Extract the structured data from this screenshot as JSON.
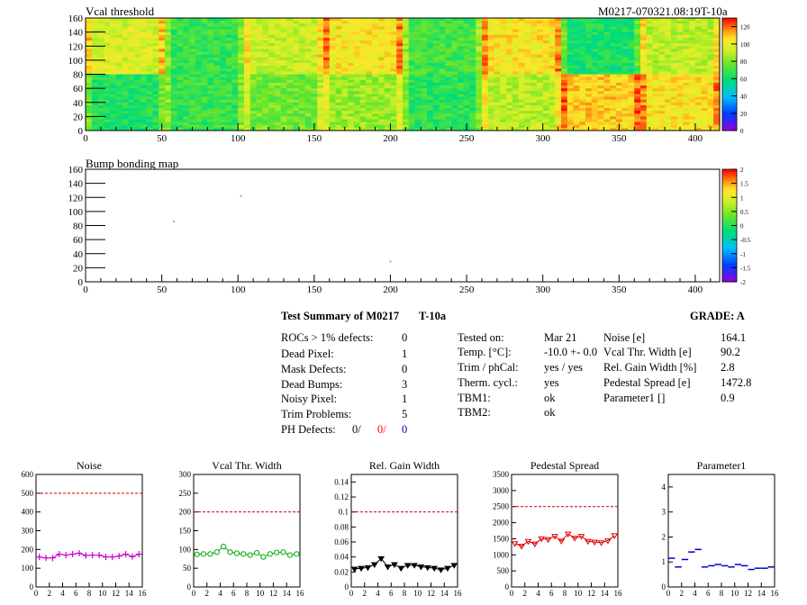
{
  "header": {
    "map1_title": "Vcal threshold",
    "module_tag": "M0217-070321.08:19T-10a",
    "map2_title": "Bump bonding map"
  },
  "maps": {
    "x_ticks": [
      "0",
      "50",
      "100",
      "150",
      "200",
      "250",
      "300",
      "350",
      "400"
    ],
    "y_ticks": [
      "0",
      "20",
      "40",
      "60",
      "80",
      "100",
      "120",
      "140",
      "160"
    ],
    "xlim": [
      0,
      416
    ],
    "ylim": [
      0,
      160
    ],
    "vcal_scale_labels": [
      "0",
      "20",
      "40",
      "60",
      "80",
      "100",
      "120"
    ],
    "vcal_zlim": [
      0,
      130
    ],
    "bump_scale_labels": [
      "-2",
      "-1.5",
      "-1",
      "-0.5",
      "0",
      "0.5",
      "1",
      "1.5",
      "2"
    ],
    "bump_zlim": [
      -2,
      2
    ],
    "vcal_roc_levels_bottom_row": [
      64,
      68,
      78,
      84,
      66,
      90,
      108,
      104
    ],
    "vcal_roc_levels_top_row": [
      96,
      68,
      92,
      104,
      70,
      104,
      62,
      90
    ],
    "bump_points": [
      [
        58,
        86
      ],
      [
        102,
        122
      ],
      [
        200,
        29
      ]
    ]
  },
  "summary": {
    "title": "Test Summary of M0217",
    "test_name": "T-10a",
    "grade_label": "GRADE:  A",
    "col1": [
      {
        "label": "ROCs > 1% defects:",
        "value": "0"
      },
      {
        "label": "Dead Pixel:",
        "value": "1"
      },
      {
        "label": "Mask Defects:",
        "value": "0"
      },
      {
        "label": "Dead Bumps:",
        "value": "3"
      },
      {
        "label": "Noisy Pixel:",
        "value": "1"
      },
      {
        "label": "Trim Problems:",
        "value": "5"
      }
    ],
    "ph_label": "PH Defects:",
    "ph_values": [
      "0/",
      "0/",
      "0"
    ],
    "ph_colors": [
      "#000000",
      "#ff0000",
      "#0000cc"
    ],
    "col2": [
      {
        "label": "Tested on:",
        "value": "Mar 21"
      },
      {
        "label": "Temp. [°C]:",
        "value": "-10.0 +- 0.0"
      },
      {
        "label": "Trim / phCal:",
        "value": "yes / yes"
      },
      {
        "label": "Therm. cycl.:",
        "value": "yes"
      },
      {
        "label": "TBM1:",
        "value": "ok"
      },
      {
        "label": "TBM2:",
        "value": "ok"
      }
    ],
    "col3": [
      {
        "label": "Noise [e]",
        "value": "164.1"
      },
      {
        "label": "Vcal Thr. Width [e]",
        "value": "90.2"
      },
      {
        "label": "Rel. Gain Width [%]",
        "value": "2.8"
      },
      {
        "label": "Pedestal Spread [e]",
        "value": "1472.8"
      },
      {
        "label": "Parameter1 []",
        "value": "0.9"
      }
    ]
  },
  "chart_data": [
    {
      "type": "line",
      "title": "Noise",
      "x": [
        0,
        1,
        2,
        3,
        4,
        5,
        6,
        7,
        8,
        9,
        10,
        11,
        12,
        13,
        14,
        15
      ],
      "values": [
        160,
        155,
        155,
        175,
        170,
        175,
        180,
        168,
        170,
        170,
        160,
        160,
        165,
        175,
        162,
        175
      ],
      "ylim": [
        0,
        600
      ],
      "yticks": [
        "0",
        "100",
        "200",
        "300",
        "400",
        "500",
        "600"
      ],
      "xticks": [
        "0",
        "2",
        "4",
        "6",
        "8",
        "10",
        "12",
        "14",
        "16"
      ],
      "limit": 500,
      "color": "#cc00cc",
      "marker": "plus"
    },
    {
      "type": "line",
      "title": "Vcal Thr. Width",
      "x": [
        0,
        1,
        2,
        3,
        4,
        5,
        6,
        7,
        8,
        9,
        10,
        11,
        12,
        13,
        14,
        15
      ],
      "values": [
        87,
        88,
        88,
        93,
        108,
        93,
        90,
        88,
        85,
        91,
        80,
        88,
        92,
        93,
        85,
        88
      ],
      "ylim": [
        0,
        300
      ],
      "yticks": [
        "0",
        "50",
        "100",
        "150",
        "200",
        "250",
        "300"
      ],
      "xticks": [
        "0",
        "2",
        "4",
        "6",
        "8",
        "10",
        "12",
        "14",
        "16"
      ],
      "limit": 200,
      "color": "#00aa00",
      "marker": "circle"
    },
    {
      "type": "line",
      "title": "Rel. Gain Width",
      "x": [
        0,
        1,
        2,
        3,
        4,
        5,
        6,
        7,
        8,
        9,
        10,
        11,
        12,
        13,
        14,
        15
      ],
      "values": [
        0.024,
        0.025,
        0.026,
        0.03,
        0.038,
        0.027,
        0.03,
        0.025,
        0.029,
        0.029,
        0.027,
        0.026,
        0.025,
        0.023,
        0.025,
        0.029
      ],
      "ylim": [
        0,
        0.15
      ],
      "yticks": [
        "0",
        "0.02",
        "0.04",
        "0.06",
        "0.08",
        "0.1",
        "0.12",
        "0.14"
      ],
      "xticks": [
        "0",
        "2",
        "4",
        "6",
        "8",
        "10",
        "12",
        "14",
        "16"
      ],
      "limit": 0.1,
      "color": "#000000",
      "marker": "triangle"
    },
    {
      "type": "line",
      "title": "Pedestal Spread",
      "x": [
        0,
        1,
        2,
        3,
        4,
        5,
        6,
        7,
        8,
        9,
        10,
        11,
        12,
        13,
        14,
        15
      ],
      "values": [
        1350,
        1270,
        1420,
        1340,
        1500,
        1480,
        1580,
        1430,
        1650,
        1520,
        1580,
        1420,
        1400,
        1380,
        1440,
        1600
      ],
      "ylim": [
        0,
        3500
      ],
      "yticks": [
        "0",
        "500",
        "1000",
        "1500",
        "2000",
        "2500",
        "3000",
        "3500"
      ],
      "xticks": [
        "0",
        "2",
        "4",
        "6",
        "8",
        "10",
        "12",
        "14",
        "16"
      ],
      "limit": 2500,
      "color": "#dd0000",
      "marker": "triangle"
    },
    {
      "type": "line",
      "title": "Parameter1",
      "x": [
        0,
        1,
        2,
        3,
        4,
        5,
        6,
        7,
        8,
        9,
        10,
        11,
        12,
        13,
        14,
        15
      ],
      "values": [
        1.15,
        0.8,
        1.1,
        1.4,
        1.5,
        0.8,
        0.85,
        0.9,
        0.85,
        0.8,
        0.9,
        0.85,
        0.7,
        0.75,
        0.75,
        0.8
      ],
      "ylim": [
        0,
        4.5
      ],
      "yticks": [
        "0",
        "1",
        "2",
        "3",
        "4"
      ],
      "xticks": [
        "0",
        "2",
        "4",
        "6",
        "8",
        "10",
        "12",
        "14",
        "16"
      ],
      "limit": null,
      "color": "#0000cc",
      "marker": "hbar"
    }
  ]
}
